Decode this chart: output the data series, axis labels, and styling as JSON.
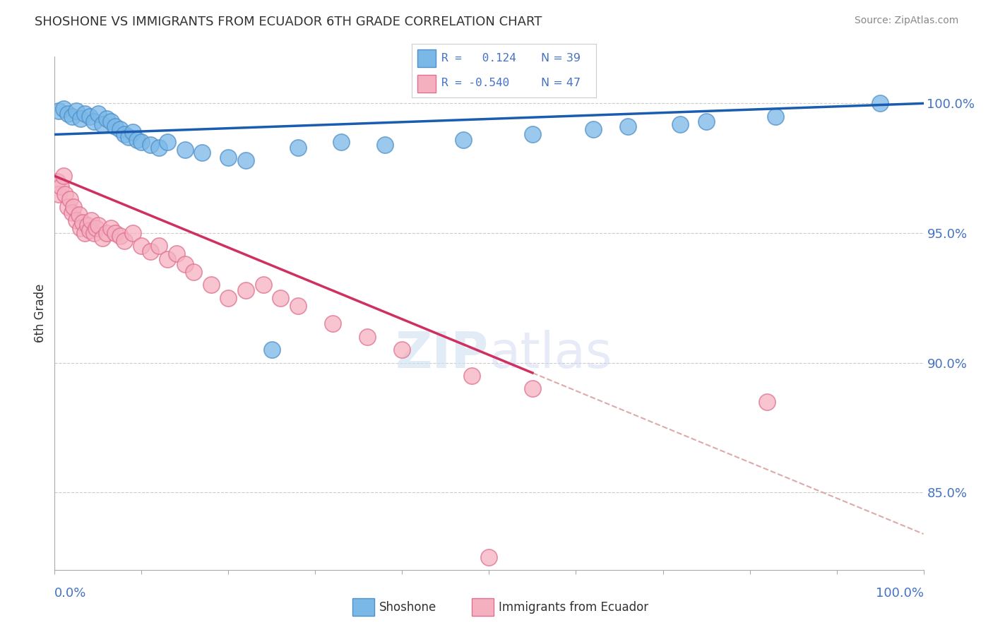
{
  "title": "SHOSHONE VS IMMIGRANTS FROM ECUADOR 6TH GRADE CORRELATION CHART",
  "source_text": "Source: ZipAtlas.com",
  "ylabel": "6th Grade",
  "xmin": 0.0,
  "xmax": 100.0,
  "ymin": 82.0,
  "ymax": 101.8,
  "yticks": [
    85.0,
    90.0,
    95.0,
    100.0
  ],
  "ytick_labels": [
    "85.0%",
    "90.0%",
    "95.0%",
    "100.0%"
  ],
  "legend_blue_r": "R =   0.124",
  "legend_blue_n": "N = 39",
  "legend_pink_r": "R = -0.540",
  "legend_pink_n": "N = 47",
  "shoshone_color": "#7ab8e8",
  "ecuador_color": "#f5b0c0",
  "shoshone_edge": "#5090c8",
  "ecuador_edge": "#e07090",
  "trend_blue": "#1a5cb0",
  "trend_pink": "#d03060",
  "trend_dashed_color": "#ddaaaa",
  "background_color": "#ffffff",
  "shoshone_x": [
    0.5,
    1.0,
    1.5,
    2.0,
    2.5,
    3.0,
    3.5,
    4.0,
    4.5,
    5.0,
    5.5,
    6.0,
    6.5,
    7.0,
    7.5,
    8.0,
    8.5,
    9.0,
    9.5,
    10.0,
    11.0,
    12.0,
    13.0,
    15.0,
    17.0,
    20.0,
    22.0,
    25.0,
    28.0,
    33.0,
    38.0,
    47.0,
    55.0,
    62.0,
    66.0,
    72.0,
    75.0,
    83.0,
    95.0
  ],
  "shoshone_y": [
    99.7,
    99.8,
    99.6,
    99.5,
    99.7,
    99.4,
    99.6,
    99.5,
    99.3,
    99.6,
    99.2,
    99.4,
    99.3,
    99.1,
    99.0,
    98.8,
    98.7,
    98.9,
    98.6,
    98.5,
    98.4,
    98.3,
    98.5,
    98.2,
    98.1,
    97.9,
    97.8,
    90.5,
    98.3,
    98.5,
    98.4,
    98.6,
    98.8,
    99.0,
    99.1,
    99.2,
    99.3,
    99.5,
    100.0
  ],
  "ecuador_x": [
    0.3,
    0.5,
    0.7,
    1.0,
    1.2,
    1.5,
    1.8,
    2.0,
    2.2,
    2.5,
    2.8,
    3.0,
    3.2,
    3.5,
    3.8,
    4.0,
    4.2,
    4.5,
    4.8,
    5.0,
    5.5,
    6.0,
    6.5,
    7.0,
    7.5,
    8.0,
    9.0,
    10.0,
    11.0,
    12.0,
    13.0,
    14.0,
    15.0,
    16.0,
    18.0,
    20.0,
    22.0,
    24.0,
    26.0,
    28.0,
    32.0,
    36.0,
    40.0,
    48.0,
    50.0,
    55.0,
    82.0
  ],
  "ecuador_y": [
    97.0,
    96.5,
    96.8,
    97.2,
    96.5,
    96.0,
    96.3,
    95.8,
    96.0,
    95.5,
    95.7,
    95.2,
    95.4,
    95.0,
    95.3,
    95.1,
    95.5,
    95.0,
    95.2,
    95.3,
    94.8,
    95.0,
    95.2,
    95.0,
    94.9,
    94.7,
    95.0,
    94.5,
    94.3,
    94.5,
    94.0,
    94.2,
    93.8,
    93.5,
    93.0,
    92.5,
    92.8,
    93.0,
    92.5,
    92.2,
    91.5,
    91.0,
    90.5,
    89.5,
    82.5,
    89.0,
    88.5
  ],
  "pink_line_solid_end": 55.0,
  "pink_line_dashed_end": 100.0,
  "blue_line_start_y": 98.8,
  "blue_line_end_y": 100.0
}
